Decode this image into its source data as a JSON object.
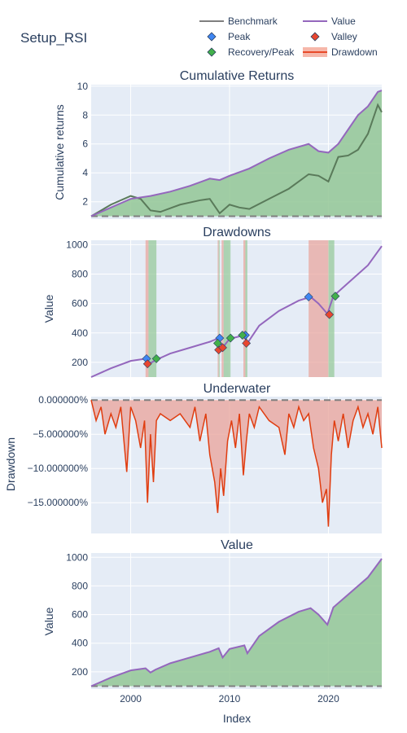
{
  "title": "Setup_RSI",
  "legend": [
    {
      "label": "Benchmark",
      "kind": "line",
      "color": "#7f7f7f"
    },
    {
      "label": "Value",
      "kind": "line",
      "color": "#9467bd"
    },
    {
      "label": "Peak",
      "kind": "diamond",
      "color": "#3f86f2"
    },
    {
      "label": "Valley",
      "kind": "diamond",
      "color": "#e8462f"
    },
    {
      "label": "Recovery/Peak",
      "kind": "diamond",
      "color": "#42b04b"
    },
    {
      "label": "Drawdown",
      "kind": "band",
      "color": "#e84a2a"
    }
  ],
  "colors": {
    "value": "#9467bd",
    "benchmark": "#5a7a5a",
    "fill_green": "#93c795",
    "fill_red": "#e9a39a",
    "peak": "#3f86f2",
    "valley": "#e8462f",
    "recovery": "#42b04b",
    "underwater_line": "#e03d10",
    "plot_bg": "#e5ecf6",
    "grid": "#ffffff"
  },
  "x_axis": {
    "title": "Index",
    "range": [
      1996,
      2025.4
    ],
    "ticks": [
      2000,
      2010,
      2020
    ],
    "tick_labels": [
      "2000",
      "2010",
      "2020"
    ]
  },
  "chart_data": [
    {
      "type": "line",
      "title": "Cumulative Returns",
      "ylabel": "Cumulative returns",
      "ylim": [
        0.8,
        10.1
      ],
      "yticks": [
        2,
        4,
        6,
        8,
        10
      ],
      "ytick_labels": [
        "2",
        "4",
        "6",
        "8",
        "10"
      ],
      "baseline": 1,
      "series": [
        {
          "name": "Value",
          "x": [
            1996,
            1998,
            2000,
            2002,
            2004,
            2006,
            2008,
            2009,
            2010,
            2012,
            2014,
            2016,
            2018,
            2019,
            2020,
            2021,
            2022,
            2023,
            2024,
            2025,
            2025.4
          ],
          "values": [
            1.0,
            1.6,
            2.2,
            2.4,
            2.7,
            3.1,
            3.6,
            3.5,
            3.8,
            4.3,
            5.0,
            5.6,
            6.0,
            5.5,
            5.4,
            6.0,
            7.0,
            8.0,
            8.6,
            9.6,
            9.7
          ]
        },
        {
          "name": "Benchmark",
          "x": [
            1996,
            1998,
            2000,
            2001,
            2002,
            2003,
            2005,
            2007,
            2008,
            2009,
            2010,
            2011,
            2012,
            2014,
            2016,
            2018,
            2019,
            2020,
            2021,
            2022,
            2023,
            2024,
            2025,
            2025.4
          ],
          "values": [
            1.0,
            1.8,
            2.4,
            2.2,
            1.4,
            1.3,
            1.8,
            2.1,
            2.2,
            1.2,
            1.8,
            1.6,
            1.5,
            2.2,
            2.9,
            3.9,
            3.8,
            3.4,
            5.1,
            5.2,
            5.6,
            6.7,
            8.7,
            8.2
          ]
        }
      ]
    },
    {
      "type": "line",
      "title": "Drawdowns",
      "ylabel": "Value",
      "ylim": [
        100,
        1030
      ],
      "yticks": [
        200,
        400,
        600,
        800,
        1000
      ],
      "ytick_labels": [
        "200",
        "400",
        "600",
        "800",
        "1000"
      ],
      "series": [
        {
          "name": "Value",
          "x": [
            1996,
            1998,
            2000,
            2001.5,
            2002,
            2002.5,
            2004,
            2006,
            2008,
            2008.9,
            2009.3,
            2010,
            2011.5,
            2011.8,
            2013,
            2015,
            2017,
            2018.2,
            2019,
            2019.9,
            2020.5,
            2022,
            2024,
            2025.4
          ],
          "values": [
            100,
            160,
            210,
            225,
            195,
            215,
            260,
            300,
            340,
            365,
            300,
            360,
            385,
            330,
            450,
            550,
            620,
            645,
            600,
            530,
            650,
            740,
            860,
            990
          ]
        }
      ],
      "drawdowns": [
        {
          "start": 2001.5,
          "valley": 2001.8,
          "end": 2002.6
        },
        {
          "start": 2008.8,
          "valley": 2008.9,
          "end": 2009.0
        },
        {
          "start": 2009.2,
          "valley": 2009.4,
          "end": 2010.1
        },
        {
          "start": 2011.4,
          "valley": 2011.6,
          "end": 2011.8
        },
        {
          "start": 2018.0,
          "valley": 2020.0,
          "end": 2020.6
        }
      ],
      "peaks": [
        {
          "x": 2001.6,
          "y": 225
        },
        {
          "x": 2009.0,
          "y": 365
        },
        {
          "x": 2011.6,
          "y": 385
        },
        {
          "x": 2018.0,
          "y": 645
        }
      ],
      "valleys": [
        {
          "x": 2001.7,
          "y": 190
        },
        {
          "x": 2008.9,
          "y": 285
        },
        {
          "x": 2009.3,
          "y": 300
        },
        {
          "x": 2011.7,
          "y": 330
        },
        {
          "x": 2020.1,
          "y": 525
        }
      ],
      "recoveries": [
        {
          "x": 2002.6,
          "y": 225
        },
        {
          "x": 2008.8,
          "y": 330
        },
        {
          "x": 2010.1,
          "y": 365
        },
        {
          "x": 2011.3,
          "y": 385
        },
        {
          "x": 2020.7,
          "y": 650
        }
      ]
    },
    {
      "type": "area",
      "title": "Underwater",
      "ylabel": "Drawdown",
      "ylim": [
        -19.5,
        0.5
      ],
      "yticks": [
        0,
        -5,
        -10,
        -15
      ],
      "ytick_labels": [
        "0.000000%",
        "−5.000000%",
        "−10.000000%",
        "−15.000000%"
      ],
      "series": [
        {
          "name": "Drawdown",
          "x": [
            1996,
            1996.5,
            1997,
            1997.4,
            1998,
            1998.5,
            1999,
            1999.6,
            2000,
            2000.5,
            2001,
            2001.4,
            2001.7,
            2002,
            2002.3,
            2002.6,
            2003,
            2004,
            2005,
            2006,
            2006.5,
            2007,
            2007.6,
            2008,
            2008.5,
            2008.8,
            2009.1,
            2009.4,
            2009.8,
            2010.2,
            2010.6,
            2011,
            2011.4,
            2011.7,
            2012,
            2012.5,
            2013,
            2014,
            2015,
            2015.6,
            2016,
            2016.5,
            2017,
            2017.5,
            2018,
            2018.5,
            2019,
            2019.4,
            2019.8,
            2020,
            2020.3,
            2020.6,
            2021,
            2021.5,
            2022,
            2022.5,
            2023,
            2023.5,
            2024,
            2024.5,
            2025,
            2025.4
          ],
          "values": [
            0,
            -3,
            -1,
            -5,
            -2,
            -4,
            -1,
            -10.5,
            -1,
            -3,
            -7,
            -3,
            -15,
            -5,
            -12,
            -3,
            -2,
            -3,
            -2,
            -4,
            -1,
            -6,
            -2,
            -8,
            -12,
            -16.5,
            -10,
            -14,
            -6,
            -3,
            -7,
            -2,
            -11,
            -6,
            -2,
            -4,
            -1,
            -3,
            -4,
            -8,
            -2,
            -4,
            -1,
            -3,
            -2,
            -7,
            -10,
            -15,
            -13,
            -18.5,
            -8,
            -3,
            -6,
            -2,
            -7,
            -3,
            -1,
            -4,
            -2,
            -5,
            -1,
            -7
          ]
        }
      ]
    },
    {
      "type": "area",
      "title": "Value",
      "ylabel": "Value",
      "ylim": [
        80,
        1030
      ],
      "yticks": [
        200,
        400,
        600,
        800,
        1000
      ],
      "ytick_labels": [
        "200",
        "400",
        "600",
        "800",
        "1000"
      ],
      "baseline": 100,
      "series": [
        {
          "name": "Value",
          "x": [
            1996,
            1998,
            2000,
            2001.5,
            2002,
            2002.5,
            2004,
            2006,
            2008,
            2008.9,
            2009.3,
            2010,
            2011.5,
            2011.8,
            2013,
            2015,
            2017,
            2018.2,
            2019,
            2019.9,
            2020.5,
            2022,
            2024,
            2025.4
          ],
          "values": [
            100,
            160,
            210,
            225,
            195,
            215,
            260,
            300,
            340,
            365,
            300,
            360,
            385,
            330,
            450,
            550,
            620,
            645,
            600,
            530,
            650,
            740,
            860,
            990
          ]
        }
      ]
    }
  ]
}
